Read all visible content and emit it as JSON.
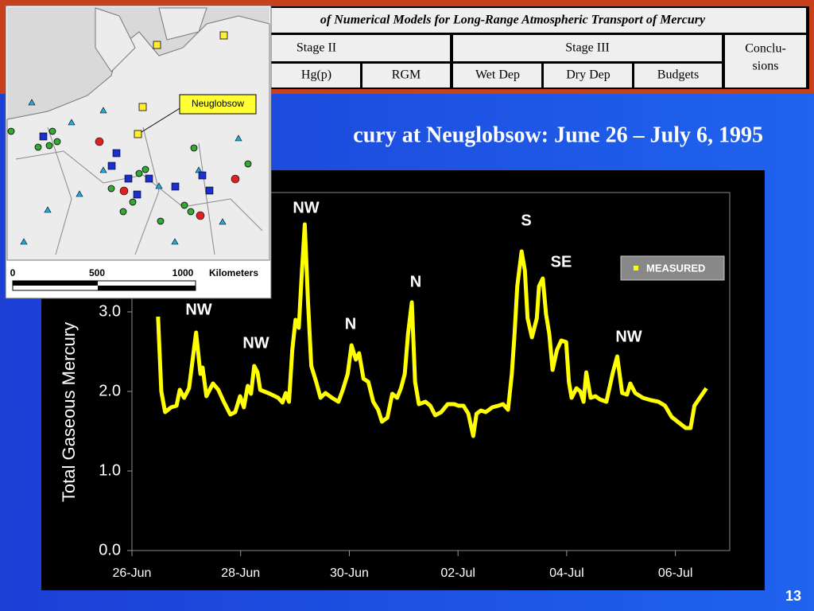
{
  "header": {
    "title": "of Numerical Models for Long-Range Atmospheric Transport of Mercury",
    "tabs": [
      "Stage II",
      "Stage III",
      "Conclu-",
      "sions",
      "Hg(p)",
      "RGM",
      "Wet Dep",
      "Dry Dep",
      "Budgets"
    ]
  },
  "map": {
    "label": "Neuglobsow",
    "scale": [
      "0",
      "500",
      "1000"
    ],
    "unit": "Kilometers"
  },
  "page_number": "13",
  "chart_data": {
    "type": "line",
    "title": "cury at Neuglobsow: June 26 – July 6, 1995",
    "y_label": "Total Gaseous Mercury",
    "x": [
      26.48,
      26.54,
      26.61,
      26.72,
      26.82,
      26.88,
      26.96,
      27.05,
      27.18,
      27.26,
      27.3,
      27.37,
      27.49,
      27.59,
      27.69,
      27.81,
      27.9,
      27.99,
      28.06,
      28.13,
      28.19,
      28.25,
      28.31,
      28.36,
      28.54,
      28.69,
      28.77,
      28.83,
      28.89,
      28.95,
      29.01,
      29.07,
      29.12,
      29.18,
      29.24,
      29.3,
      29.39,
      29.47,
      29.56,
      29.68,
      29.8,
      29.88,
      29.97,
      30.04,
      30.12,
      30.18,
      30.26,
      30.35,
      30.44,
      30.53,
      30.6,
      30.7,
      30.79,
      30.88,
      30.95,
      31.02,
      31.08,
      31.15,
      31.21,
      31.28,
      31.4,
      31.49,
      31.58,
      31.69,
      31.81,
      31.93,
      32.01,
      32.1,
      32.19,
      32.28,
      32.34,
      32.42,
      32.51,
      32.63,
      32.74,
      32.83,
      32.92,
      32.99,
      33.04,
      33.09,
      33.17,
      33.23,
      33.28,
      33.36,
      33.45,
      33.49,
      33.56,
      33.62,
      33.68,
      33.74,
      33.82,
      33.9,
      33.99,
      34.04,
      34.09,
      34.18,
      34.25,
      34.31,
      34.36,
      34.44,
      34.53,
      34.61,
      34.73,
      34.85,
      34.93,
      35.02,
      35.11,
      35.17,
      35.26,
      35.4,
      35.55,
      35.69,
      35.81,
      35.93,
      36.04,
      36.19,
      36.28,
      36.35,
      36.45,
      36.57
    ],
    "series": [
      {
        "name": "MEASURED",
        "color": "#ffff00",
        "values": [
          2.94,
          2.0,
          1.74,
          1.8,
          1.82,
          2.02,
          1.92,
          2.04,
          2.74,
          2.22,
          2.3,
          1.94,
          2.1,
          2.02,
          1.87,
          1.71,
          1.74,
          1.94,
          1.8,
          2.07,
          1.97,
          2.32,
          2.24,
          2.02,
          1.97,
          1.92,
          1.86,
          1.98,
          1.87,
          2.52,
          2.9,
          2.8,
          3.42,
          4.1,
          3.12,
          2.32,
          2.12,
          1.92,
          1.98,
          1.92,
          1.87,
          2.02,
          2.22,
          2.58,
          2.4,
          2.48,
          2.16,
          2.12,
          1.87,
          1.77,
          1.62,
          1.67,
          1.97,
          1.92,
          2.04,
          2.22,
          2.72,
          3.12,
          2.12,
          1.84,
          1.87,
          1.82,
          1.7,
          1.74,
          1.84,
          1.84,
          1.82,
          1.82,
          1.72,
          1.44,
          1.72,
          1.76,
          1.74,
          1.8,
          1.82,
          1.84,
          1.77,
          2.22,
          2.72,
          3.32,
          3.76,
          3.52,
          2.92,
          2.68,
          2.92,
          3.32,
          3.42,
          2.97,
          2.72,
          2.27,
          2.52,
          2.64,
          2.62,
          2.12,
          1.92,
          2.04,
          2.0,
          1.87,
          2.24,
          1.92,
          1.94,
          1.9,
          1.87,
          2.24,
          2.44,
          1.98,
          1.96,
          2.1,
          1.98,
          1.92,
          1.89,
          1.87,
          1.82,
          1.68,
          1.62,
          1.54,
          1.54,
          1.82,
          1.92,
          2.04
        ]
      }
    ],
    "xlim": [
      26,
      37
    ],
    "xticks": [
      {
        "value": 26,
        "label": "26-Jun"
      },
      {
        "value": 28,
        "label": "28-Jun"
      },
      {
        "value": 30,
        "label": "30-Jun"
      },
      {
        "value": 32,
        "label": "02-Jul"
      },
      {
        "value": 34,
        "label": "04-Jul"
      },
      {
        "value": 36,
        "label": "06-Jul"
      }
    ],
    "ylim": [
      0,
      4.5
    ],
    "yticks": [
      {
        "value": 0,
        "label": "0.0"
      },
      {
        "value": 1,
        "label": "1.0"
      },
      {
        "value": 2,
        "label": "2.0"
      },
      {
        "value": 3,
        "label": "3.0"
      }
    ],
    "annotations": [
      "NW",
      "S",
      "SE",
      "N",
      "NW",
      "N",
      "NW",
      "NW"
    ],
    "legend": "upper right"
  }
}
